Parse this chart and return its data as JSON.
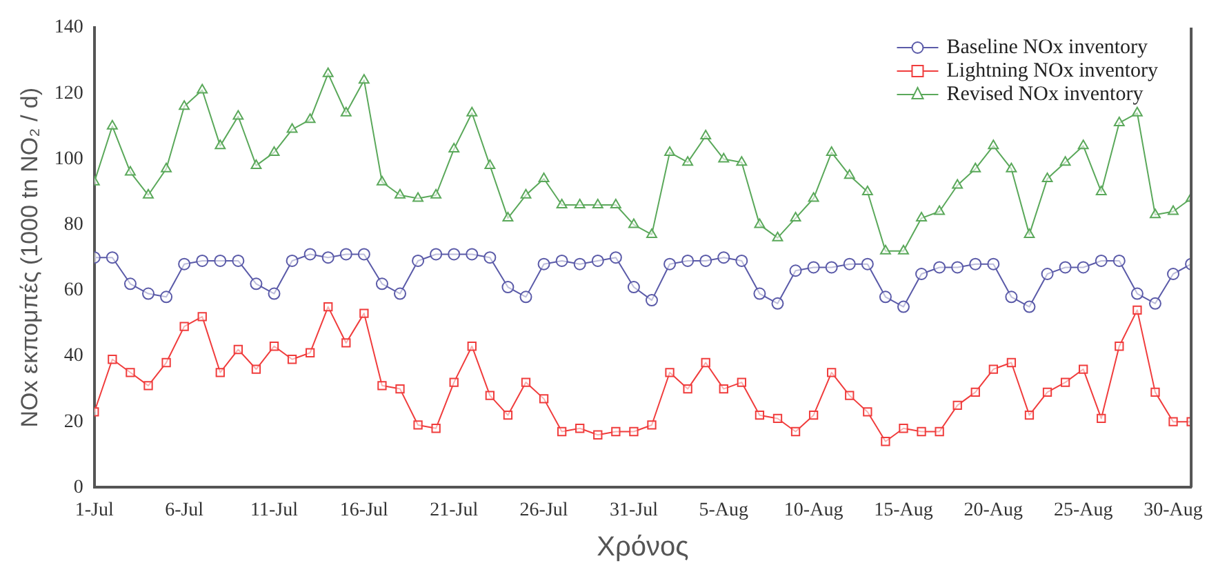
{
  "chart_data": {
    "type": "line",
    "xlabel": "Χρόνος",
    "ylabel": "NOx εκπομπές (1000 tn NO₂ / d)",
    "x": [
      "--07-01",
      "--07-02",
      "--07-03",
      "--07-04",
      "--07-05",
      "--07-06",
      "--07-07",
      "--07-08",
      "--07-09",
      "--07-10",
      "--07-11",
      "--07-12",
      "--07-13",
      "--07-14",
      "--07-15",
      "--07-16",
      "--07-17",
      "--07-18",
      "--07-19",
      "--07-20",
      "--07-21",
      "--07-22",
      "--07-23",
      "--07-24",
      "--07-25",
      "--07-26",
      "--07-27",
      "--07-28",
      "--07-29",
      "--07-30",
      "--07-31",
      "--08-01",
      "--08-02",
      "--08-03",
      "--08-04",
      "--08-05",
      "--08-06",
      "--08-07",
      "--08-08",
      "--08-09",
      "--08-10",
      "--08-11",
      "--08-12",
      "--08-13",
      "--08-14",
      "--08-15",
      "--08-16",
      "--08-17",
      "--08-18",
      "--08-19",
      "--08-20",
      "--08-21",
      "--08-22",
      "--08-23",
      "--08-24",
      "--08-25",
      "--08-26",
      "--08-27",
      "--08-28",
      "--08-29",
      "--08-30",
      "--08-31"
    ],
    "series": [
      {
        "name": "Baseline NOx inventory",
        "color": "#5a5aa8",
        "marker": "circle",
        "values": [
          70,
          70,
          62,
          59,
          58,
          68,
          69,
          69,
          69,
          62,
          59,
          69,
          71,
          70,
          71,
          71,
          62,
          59,
          69,
          71,
          71,
          71,
          70,
          61,
          58,
          68,
          69,
          68,
          69,
          70,
          61,
          57,
          68,
          69,
          69,
          70,
          69,
          59,
          56,
          66,
          67,
          67,
          68,
          68,
          58,
          55,
          65,
          67,
          67,
          68,
          68,
          58,
          55,
          65,
          67,
          67,
          69,
          69,
          59,
          56,
          65,
          68
        ]
      },
      {
        "name": "Lightning NOx inventory",
        "color": "#f03c3c",
        "marker": "square",
        "values": [
          23,
          39,
          35,
          31,
          38,
          49,
          52,
          35,
          42,
          36,
          43,
          39,
          41,
          55,
          44,
          53,
          31,
          30,
          19,
          18,
          32,
          43,
          28,
          22,
          32,
          27,
          17,
          18,
          16,
          17,
          17,
          19,
          35,
          30,
          38,
          30,
          32,
          22,
          21,
          17,
          22,
          35,
          28,
          23,
          14,
          18,
          17,
          17,
          25,
          29,
          36,
          38,
          22,
          29,
          32,
          36,
          21,
          43,
          54,
          29,
          20,
          20
        ]
      },
      {
        "name": "Revised NOx inventory",
        "color": "#5aa85a",
        "marker": "triangle",
        "values": [
          93,
          110,
          96,
          89,
          97,
          116,
          121,
          104,
          113,
          98,
          102,
          109,
          112,
          126,
          114,
          124,
          93,
          89,
          88,
          89,
          103,
          114,
          98,
          82,
          89,
          94,
          86,
          86,
          86,
          86,
          80,
          77,
          102,
          99,
          107,
          100,
          99,
          80,
          76,
          82,
          88,
          102,
          95,
          90,
          72,
          72,
          82,
          84,
          92,
          97,
          104,
          97,
          77,
          94,
          99,
          104,
          90,
          111,
          114,
          83,
          84,
          88
        ]
      }
    ],
    "xlim": [
      "--07-01",
      "--08-31"
    ],
    "xticks": [
      {
        "value": "--07-01",
        "label": "1-Jul"
      },
      {
        "value": "--07-06",
        "label": "6-Jul"
      },
      {
        "value": "--07-11",
        "label": "11-Jul"
      },
      {
        "value": "--07-16",
        "label": "16-Jul"
      },
      {
        "value": "--07-21",
        "label": "21-Jul"
      },
      {
        "value": "--07-26",
        "label": "26-Jul"
      },
      {
        "value": "--07-31",
        "label": "31-Jul"
      },
      {
        "value": "--08-05",
        "label": "5-Aug"
      },
      {
        "value": "--08-10",
        "label": "10-Aug"
      },
      {
        "value": "--08-15",
        "label": "15-Aug"
      },
      {
        "value": "--08-20",
        "label": "20-Aug"
      },
      {
        "value": "--08-25",
        "label": "25-Aug"
      },
      {
        "value": "--08-30",
        "label": "30-Aug"
      }
    ],
    "ylim": [
      0,
      140
    ],
    "yticks": [
      0,
      20,
      40,
      60,
      80,
      100,
      120,
      140
    ],
    "grid": false,
    "legend": "top right",
    "line_style": "solid"
  }
}
